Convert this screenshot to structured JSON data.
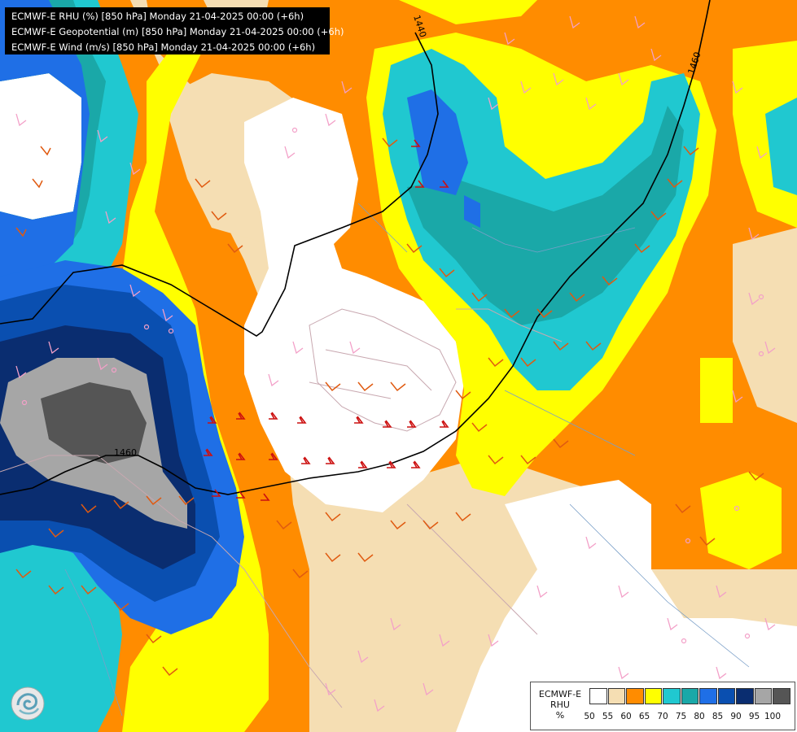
{
  "header": {
    "lines": [
      "ECMWF-E RHU (%) [850 hPa] Monday 21-04-2025 00:00 (+6h)",
      "ECMWF-E Geopotential (m) [850 hPa] Monday 21-04-2025 00:00 (+6h)",
      "ECMWF-E Wind (m/s) [850 hPa] Monday 21-04-2025 00:00 (+6h)"
    ]
  },
  "contours": {
    "labels": [
      "1440",
      "1460",
      "1460"
    ]
  },
  "legend": {
    "model": "ECMWF-E",
    "variable": "RHU",
    "unit": "%",
    "ticks": [
      "50",
      "55",
      "60",
      "65",
      "70",
      "75",
      "80",
      "85",
      "90",
      "95",
      "100"
    ],
    "colors": [
      "#ffffff",
      "#f5deb3",
      "#ff8c00",
      "#ffff00",
      "#20c8d0",
      "#1aa8a8",
      "#1f6fe6",
      "#0a4fb0",
      "#0a2d70",
      "#a6a6a6",
      "#555555"
    ]
  },
  "palette": {
    "wheat": "#f5deb3",
    "orange": "#ff8c00",
    "yellow": "#ffff00",
    "cyan": "#20c8d0",
    "teal": "#1aa8a8",
    "blue": "#1f6fe6",
    "darkblue": "#0a4fb0",
    "navy": "#0a2d70",
    "gray": "#a6a6a6",
    "darkgray": "#555555"
  },
  "icons": {
    "logo": "ecmwf-swirl-icon"
  }
}
